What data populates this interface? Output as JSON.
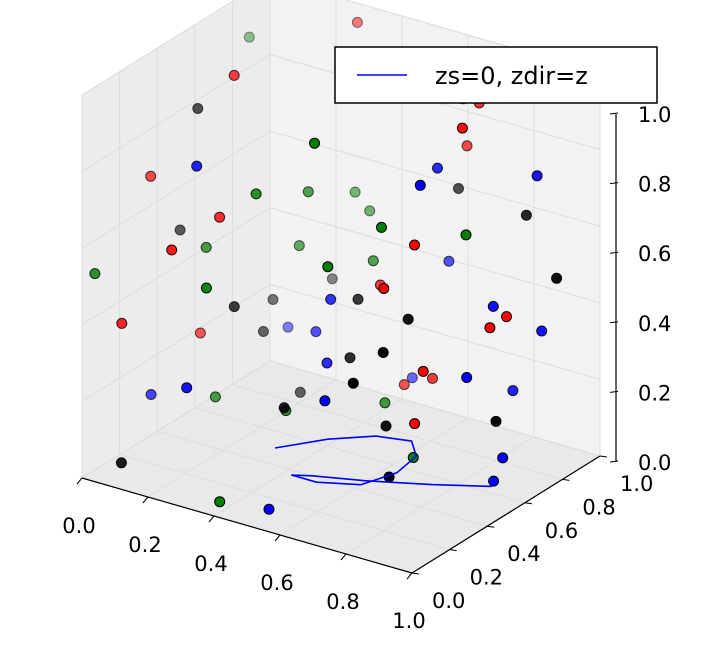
{
  "chart_data": {
    "type": "scatter",
    "projection": "3d",
    "title": "",
    "xlabel": "",
    "ylabel": "",
    "zlabel": "",
    "xlim": [
      0,
      1
    ],
    "ylim": [
      0,
      1
    ],
    "zlim": [
      0,
      1
    ],
    "xticks": [
      "0.0",
      "0.2",
      "0.4",
      "0.6",
      "0.8",
      "1.0"
    ],
    "yticks": [
      "0.0",
      "0.2",
      "0.4",
      "0.6",
      "0.8",
      "1.0"
    ],
    "zticks": [
      "0.0",
      "0.2",
      "0.4",
      "0.6",
      "0.8",
      "1.0"
    ],
    "grid": true,
    "legend": {
      "placement": "top-right",
      "entries": [
        {
          "label": "zs=0, zdir=z",
          "color": "#0000ff",
          "marker": "line"
        }
      ]
    },
    "line_series": {
      "label": "zs=0, zdir=z",
      "color": "#0000ff",
      "zdir": "z",
      "zs": 0,
      "x": [
        0.3,
        0.38,
        0.47,
        0.56,
        0.62,
        0.635,
        0.6,
        0.5,
        0.425,
        0.47,
        0.595,
        0.747,
        0.877
      ],
      "y": [
        0.5,
        0.64,
        0.74,
        0.77,
        0.69,
        0.56,
        0.43,
        0.37,
        0.37,
        0.4,
        0.46,
        0.55,
        0.64
      ]
    },
    "scatter_colors": [
      "#ff0000",
      "#008000",
      "#0000ff",
      "#000000"
    ]
  },
  "axis_colors": {
    "pane": "#f2f2f2",
    "grid": "#dddddd",
    "axis": "#000000"
  }
}
